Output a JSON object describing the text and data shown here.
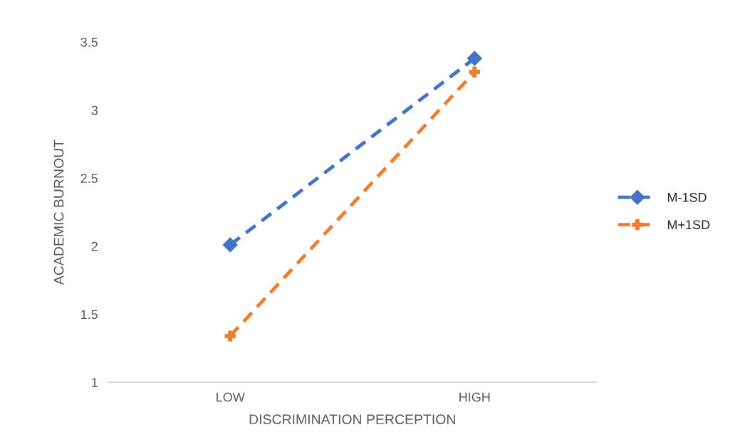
{
  "chart_data": {
    "type": "line",
    "xlabel": "DISCRIMINATION PERCEPTION",
    "ylabel": "ACADEMIC BURNOUT",
    "categories": [
      "LOW",
      "HIGH"
    ],
    "series": [
      {
        "name": "M-1SD",
        "color": "#4472c4",
        "values": [
          2.01,
          3.38
        ],
        "marker": "diamond",
        "line_style": "dashed"
      },
      {
        "name": "M+1SD",
        "color": "#ed7d31",
        "values": [
          1.34,
          3.28
        ],
        "marker": "cross",
        "line_style": "dashed"
      }
    ],
    "ylim": [
      1,
      3.5
    ],
    "yticks": [
      1,
      1.5,
      2,
      2.5,
      3,
      3.5
    ],
    "grid": false,
    "legend": "right"
  }
}
